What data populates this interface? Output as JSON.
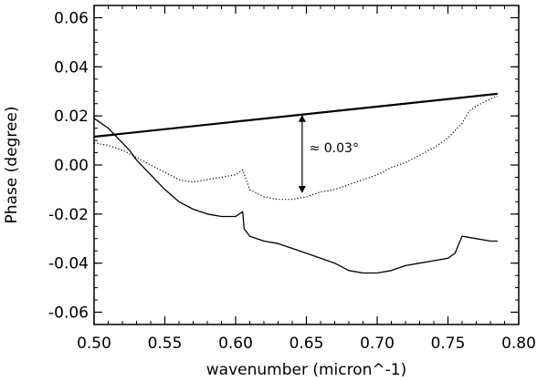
{
  "chart_data": {
    "type": "line",
    "title": "",
    "xlabel": "wavenumber (micron^-1)",
    "ylabel": "Phase (degree)",
    "xlim": [
      0.5,
      0.8
    ],
    "ylim": [
      -0.065,
      0.065
    ],
    "xticks": [
      0.5,
      0.55,
      0.6,
      0.65,
      0.7,
      0.75,
      0.8
    ],
    "xtick_labels": [
      "0.50",
      "0.55",
      "0.60",
      "0.65",
      "0.70",
      "0.75",
      "0.80"
    ],
    "yticks": [
      -0.06,
      -0.04,
      -0.02,
      0.0,
      0.02,
      0.04,
      0.06
    ],
    "ytick_labels": [
      "-0.06",
      "-0.04",
      "-0.02",
      "0.00",
      "0.02",
      "0.04",
      "0.06"
    ],
    "grid": false,
    "legend": "none",
    "series": [
      {
        "style": "solid-thin",
        "x": [
          0.5,
          0.505,
          0.51,
          0.515,
          0.52,
          0.525,
          0.53,
          0.54,
          0.55,
          0.56,
          0.57,
          0.58,
          0.59,
          0.6,
          0.605,
          0.606,
          0.61,
          0.62,
          0.63,
          0.64,
          0.65,
          0.66,
          0.67,
          0.68,
          0.69,
          0.7,
          0.71,
          0.72,
          0.73,
          0.74,
          0.75,
          0.755,
          0.76,
          0.77,
          0.78,
          0.785
        ],
        "y": [
          0.019,
          0.017,
          0.015,
          0.012,
          0.009,
          0.006,
          0.002,
          -0.004,
          -0.01,
          -0.015,
          -0.018,
          -0.02,
          -0.021,
          -0.021,
          -0.019,
          -0.026,
          -0.029,
          -0.031,
          -0.032,
          -0.034,
          -0.036,
          -0.038,
          -0.04,
          -0.043,
          -0.044,
          -0.044,
          -0.043,
          -0.041,
          -0.04,
          -0.039,
          -0.038,
          -0.036,
          -0.029,
          -0.03,
          -0.031,
          -0.031
        ]
      },
      {
        "style": "dotted",
        "x": [
          0.5,
          0.51,
          0.52,
          0.53,
          0.54,
          0.55,
          0.56,
          0.57,
          0.58,
          0.59,
          0.6,
          0.605,
          0.61,
          0.62,
          0.63,
          0.64,
          0.65,
          0.66,
          0.67,
          0.68,
          0.69,
          0.7,
          0.71,
          0.72,
          0.73,
          0.74,
          0.75,
          0.76,
          0.765,
          0.77,
          0.78,
          0.785
        ],
        "y": [
          0.009,
          0.008,
          0.006,
          0.003,
          0.0,
          -0.003,
          -0.006,
          -0.007,
          -0.006,
          -0.005,
          -0.004,
          -0.002,
          -0.01,
          -0.013,
          -0.014,
          -0.014,
          -0.013,
          -0.011,
          -0.01,
          -0.008,
          -0.006,
          -0.004,
          -0.001,
          0.001,
          0.004,
          0.007,
          0.011,
          0.017,
          0.022,
          0.024,
          0.027,
          0.028
        ]
      },
      {
        "style": "solid-thick",
        "x": [
          0.5,
          0.785
        ],
        "y": [
          0.0115,
          0.029
        ]
      }
    ],
    "annotations": [
      {
        "text": "≈ 0.03°",
        "x": 0.652,
        "y": 0.007
      }
    ],
    "arrow": {
      "x": 0.647,
      "y_top": 0.0205,
      "y_bottom": -0.0115
    }
  }
}
